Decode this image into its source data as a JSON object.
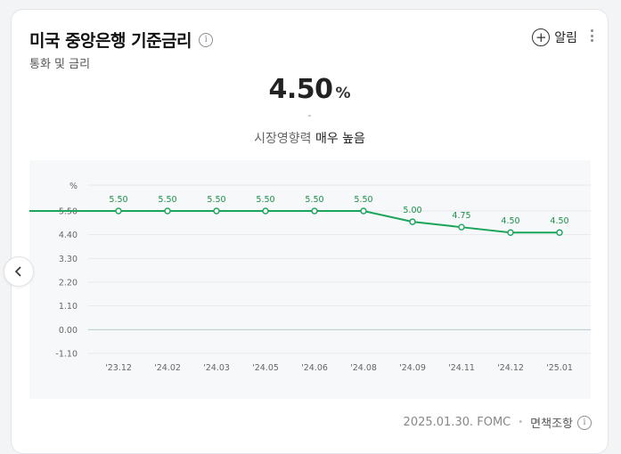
{
  "header": {
    "title": "미국 중앙은행 기준금리",
    "subtitle": "통화 및 금리",
    "alarm_label": "알림",
    "info_glyph": "i",
    "plus_glyph": "+"
  },
  "summary": {
    "value": "4.50",
    "unit": "%",
    "change": "-",
    "impact_label": "시장영향력",
    "impact_value": "매우 높음"
  },
  "footer": {
    "source": "2025.01.30. FOMC",
    "separator": "•",
    "disclaimer": "면책조항"
  },
  "colors": {
    "line": "#1aa55a",
    "label": "#1a8f4a",
    "grid": "#e6e8ea",
    "zero_line": "#b9c9cc"
  },
  "chart_data": {
    "type": "line",
    "ylabel": "%",
    "yticks": [
      "5.50",
      "4.40",
      "3.30",
      "2.20",
      "1.10",
      "0.00",
      "-1.10"
    ],
    "ylim": [
      -1.1,
      5.5
    ],
    "x": [
      "'23.12",
      "'24.02",
      "'24.03",
      "'24.05",
      "'24.06",
      "'24.08",
      "'24.09",
      "'24.11",
      "'24.12",
      "'25.01"
    ],
    "series": [
      {
        "values": [
          5.5,
          5.5,
          5.5,
          5.5,
          5.5,
          5.5,
          5.0,
          4.75,
          4.5,
          4.5
        ],
        "labels": [
          "5.50",
          "5.50",
          "5.50",
          "5.50",
          "5.50",
          "5.50",
          "5.00",
          "4.75",
          "4.50",
          "4.50"
        ]
      }
    ],
    "grid": true
  }
}
